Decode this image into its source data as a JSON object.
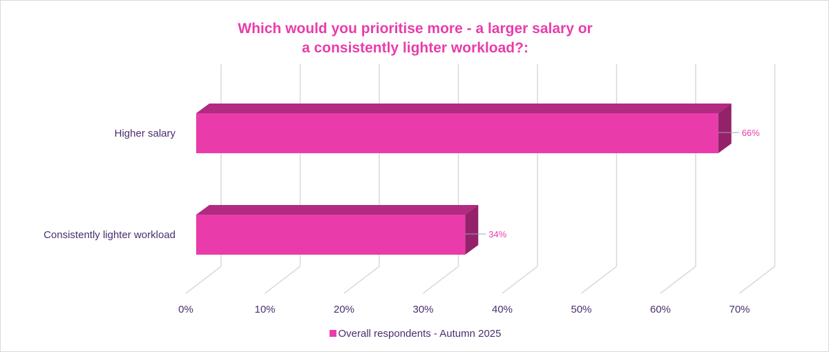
{
  "chart_data": {
    "type": "bar",
    "orientation": "horizontal-3d",
    "title_line1": "Which would you prioritise more - a larger salary or",
    "title_line2": "a consistently lighter workload?:",
    "categories": [
      "Higher salary",
      "Consistently lighter workload"
    ],
    "series": [
      {
        "name": "Overall respondents - Autumn 2025",
        "values": [
          66,
          34
        ],
        "color": "#e93caa"
      }
    ],
    "data_labels": [
      "66%",
      "34%"
    ],
    "xlim": [
      0,
      70
    ],
    "xticks": [
      "0%",
      "10%",
      "20%",
      "30%",
      "40%",
      "50%",
      "60%",
      "70%"
    ],
    "grid": true,
    "legend": "bottom"
  }
}
